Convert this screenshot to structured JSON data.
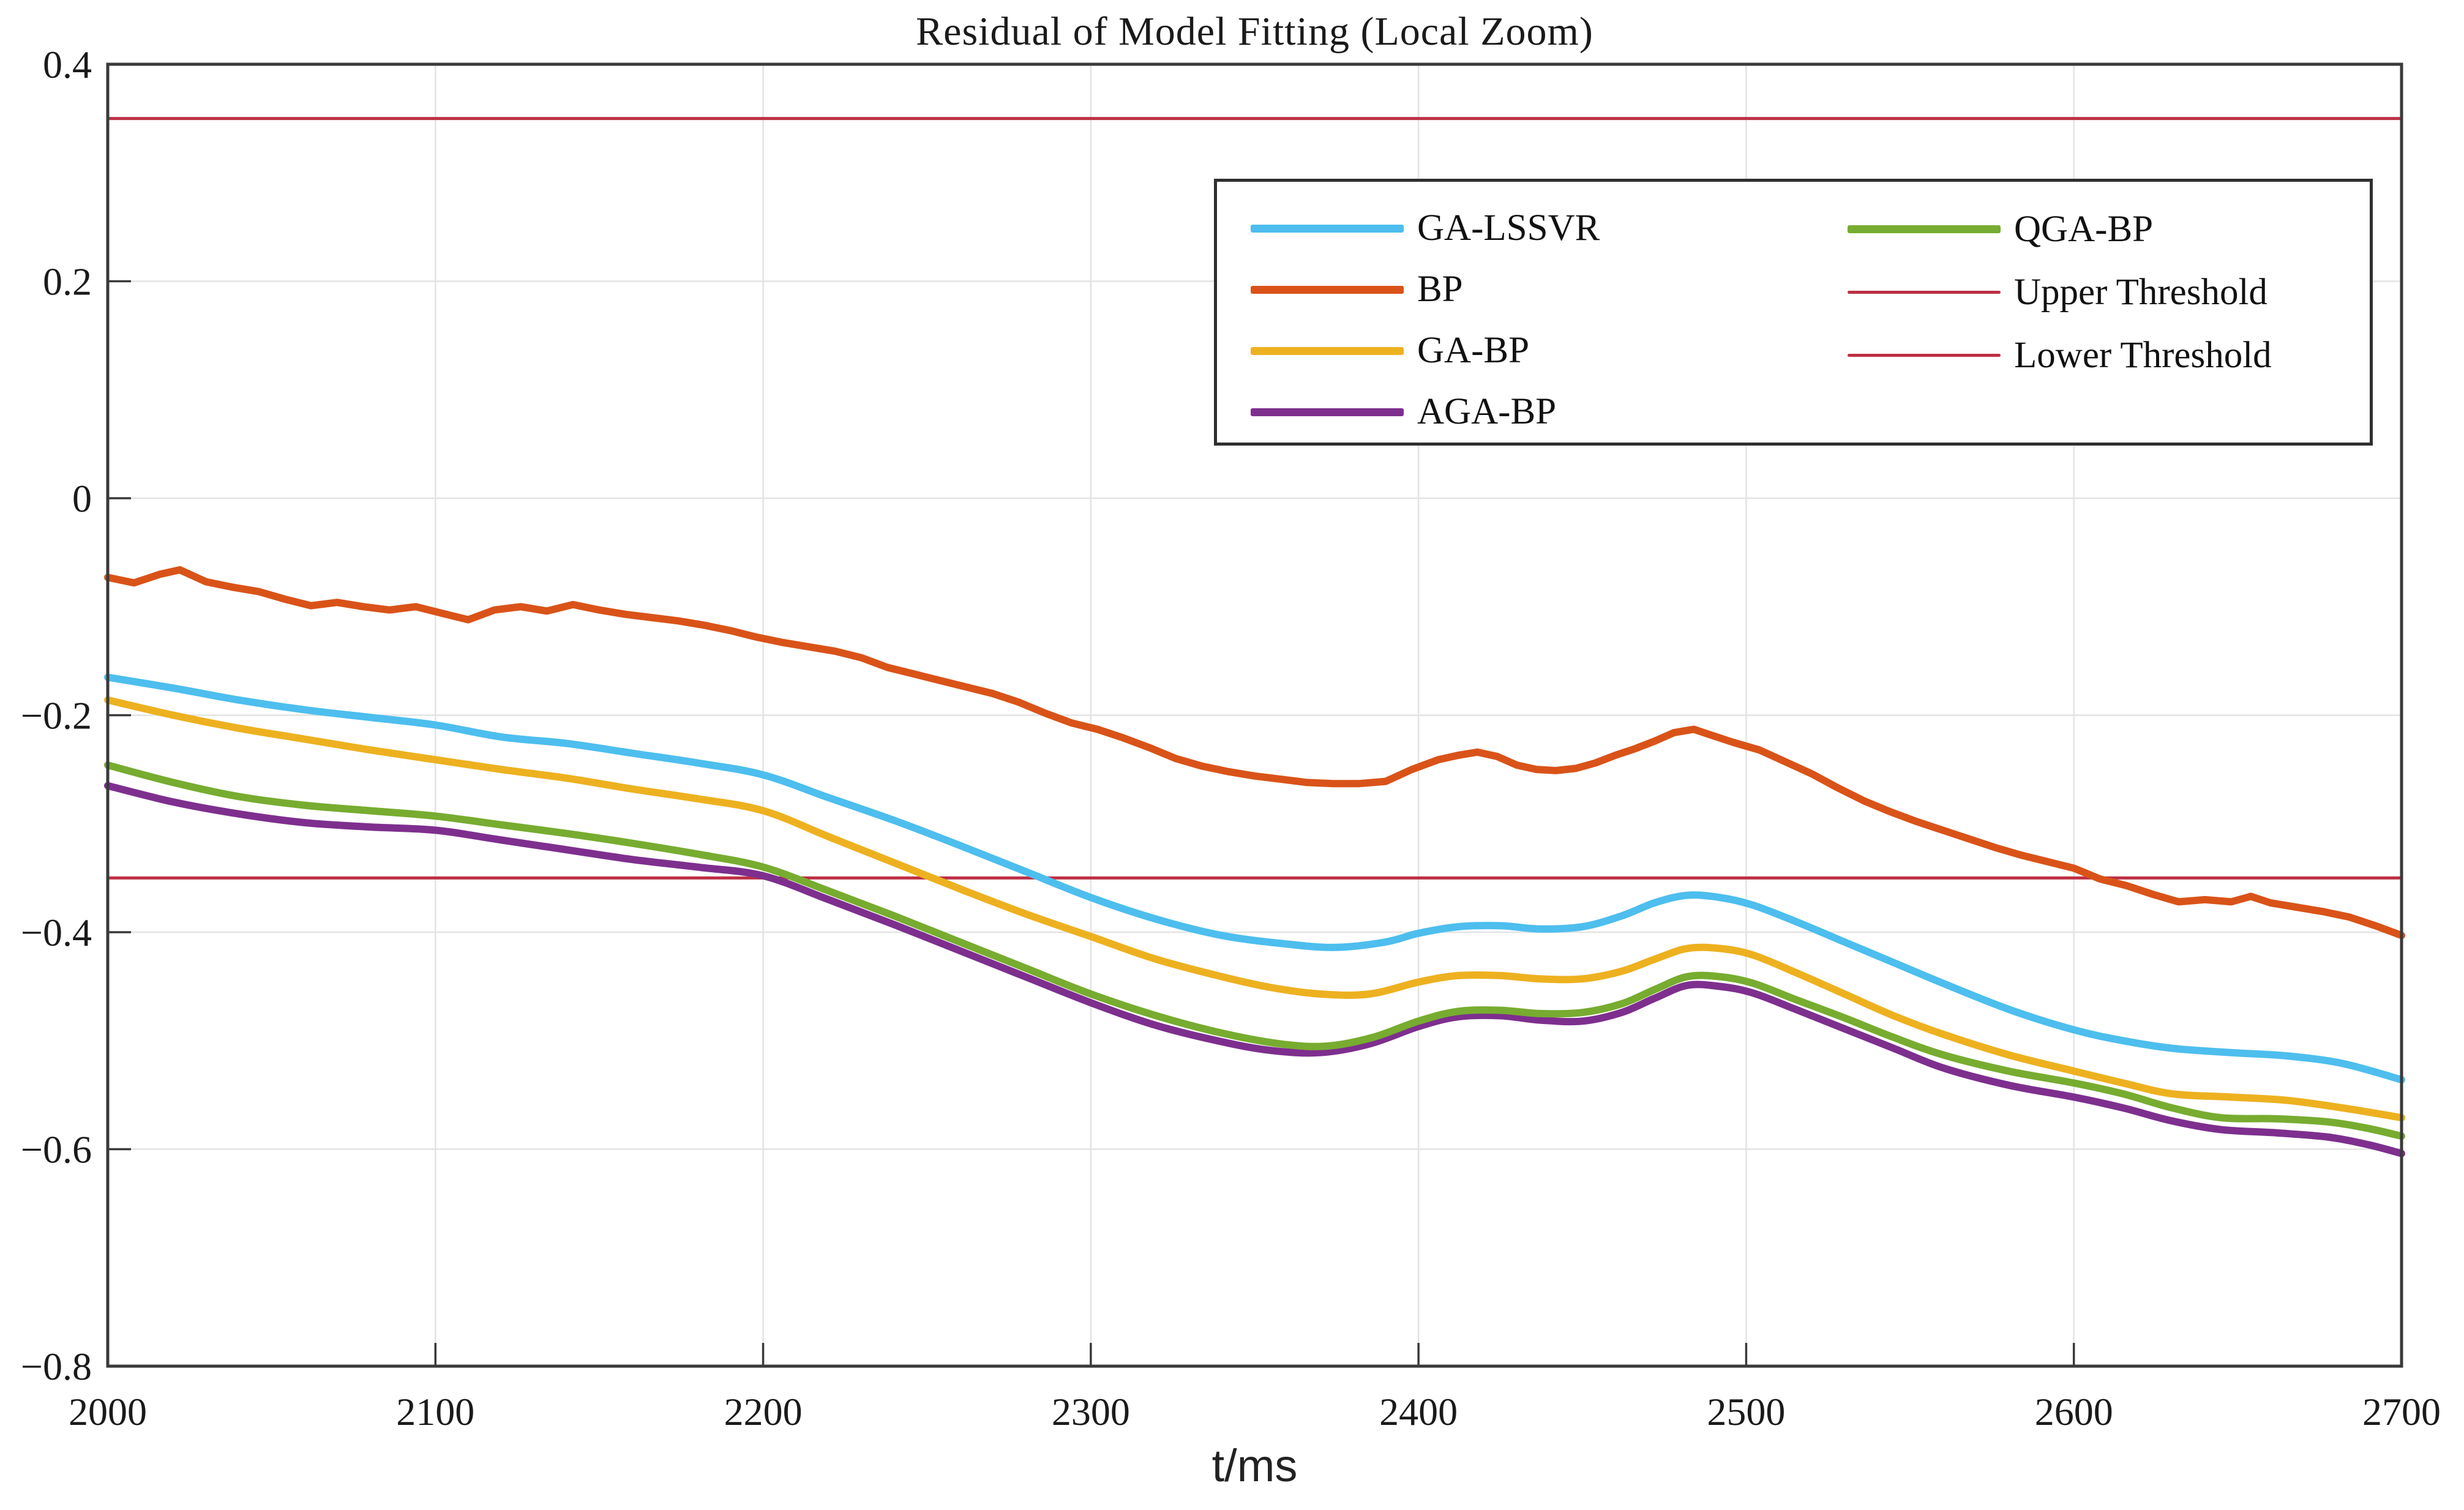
{
  "title": "Residual of Model Fitting (Local Zoom)",
  "x_axis_label": "t/ms",
  "colors": {
    "ga_lssvr": "#4DBEEE",
    "bp": "#D95319",
    "ga_bp": "#EDB120",
    "aga_bp": "#7E2F8E",
    "qga_bp": "#77AC30",
    "threshold": "#BE3045",
    "axis_frame": "#3a3a3a",
    "grid": "#e3e3e3",
    "tick_text": "#1a1a1a"
  },
  "legend": {
    "columns": [
      [
        {
          "label": "GA-LSSVR",
          "color": "#4DBEEE",
          "thickness": 13
        },
        {
          "label": "BP",
          "color": "#D95319",
          "thickness": 13
        },
        {
          "label": "GA-BP",
          "color": "#EDB120",
          "thickness": 13
        },
        {
          "label": "AGA-BP",
          "color": "#7E2F8E",
          "thickness": 13
        }
      ],
      [
        {
          "label": "QGA-BP",
          "color": "#77AC30",
          "thickness": 13
        },
        {
          "label": "Upper Threshold",
          "color": "#BE3045",
          "thickness": 5
        },
        {
          "label": "Lower Threshold",
          "color": "#BE3045",
          "thickness": 5
        }
      ]
    ]
  },
  "chart_data": {
    "type": "line",
    "title": "Residual of Model Fitting (Local Zoom)",
    "xlabel": "t/ms",
    "ylabel": "",
    "xlim": [
      2000,
      2700
    ],
    "ylim": [
      -0.8,
      0.4
    ],
    "grid": true,
    "legend_position": "upper right, two columns, boxed",
    "x_ticks": [
      2000,
      2100,
      2200,
      2300,
      2400,
      2500,
      2600,
      2700
    ],
    "x_tick_labels": [
      "2000",
      "2100",
      "2200",
      "2300",
      "2400",
      "2500",
      "2600",
      "2700"
    ],
    "y_ticks": [
      0.4,
      0.2,
      0,
      -0.2,
      -0.4,
      -0.6,
      -0.8
    ],
    "y_tick_labels": [
      "0.4",
      "0.2",
      "0",
      "−0.2",
      "−0.4",
      "−0.6",
      "−0.8"
    ],
    "thresholds": [
      {
        "name": "Upper Threshold",
        "value": 0.35,
        "color": "#BE3045",
        "width": 5
      },
      {
        "name": "Lower Threshold",
        "value": -0.35,
        "color": "#BE3045",
        "width": 5
      }
    ],
    "series": [
      {
        "name": "GA-LSSVR",
        "color": "#4DBEEE",
        "width": 12,
        "smooth": true,
        "points": [
          [
            2000,
            -0.165
          ],
          [
            2020,
            -0.175
          ],
          [
            2040,
            -0.186
          ],
          [
            2060,
            -0.195
          ],
          [
            2080,
            -0.202
          ],
          [
            2100,
            -0.209
          ],
          [
            2120,
            -0.22
          ],
          [
            2140,
            -0.226
          ],
          [
            2160,
            -0.235
          ],
          [
            2180,
            -0.244
          ],
          [
            2200,
            -0.255
          ],
          [
            2220,
            -0.276
          ],
          [
            2240,
            -0.297
          ],
          [
            2260,
            -0.32
          ],
          [
            2280,
            -0.344
          ],
          [
            2300,
            -0.368
          ],
          [
            2320,
            -0.388
          ],
          [
            2340,
            -0.403
          ],
          [
            2360,
            -0.411
          ],
          [
            2375,
            -0.414
          ],
          [
            2390,
            -0.409
          ],
          [
            2400,
            -0.401
          ],
          [
            2412,
            -0.395
          ],
          [
            2425,
            -0.394
          ],
          [
            2437,
            -0.397
          ],
          [
            2450,
            -0.395
          ],
          [
            2462,
            -0.385
          ],
          [
            2472,
            -0.373
          ],
          [
            2482,
            -0.366
          ],
          [
            2492,
            -0.368
          ],
          [
            2502,
            -0.375
          ],
          [
            2515,
            -0.39
          ],
          [
            2530,
            -0.409
          ],
          [
            2545,
            -0.428
          ],
          [
            2560,
            -0.447
          ],
          [
            2580,
            -0.471
          ],
          [
            2600,
            -0.49
          ],
          [
            2615,
            -0.5
          ],
          [
            2630,
            -0.507
          ],
          [
            2648,
            -0.511
          ],
          [
            2665,
            -0.514
          ],
          [
            2682,
            -0.521
          ],
          [
            2700,
            -0.536
          ]
        ]
      },
      {
        "name": "BP",
        "color": "#D95319",
        "width": 12,
        "smooth": false,
        "points": [
          [
            2000,
            -0.073
          ],
          [
            2008,
            -0.078
          ],
          [
            2016,
            -0.07
          ],
          [
            2022,
            -0.066
          ],
          [
            2030,
            -0.077
          ],
          [
            2038,
            -0.082
          ],
          [
            2046,
            -0.086
          ],
          [
            2054,
            -0.093
          ],
          [
            2062,
            -0.099
          ],
          [
            2070,
            -0.096
          ],
          [
            2078,
            -0.1
          ],
          [
            2086,
            -0.103
          ],
          [
            2094,
            -0.1
          ],
          [
            2102,
            -0.106
          ],
          [
            2110,
            -0.112
          ],
          [
            2118,
            -0.103
          ],
          [
            2126,
            -0.1
          ],
          [
            2134,
            -0.104
          ],
          [
            2142,
            -0.098
          ],
          [
            2150,
            -0.103
          ],
          [
            2158,
            -0.107
          ],
          [
            2166,
            -0.11
          ],
          [
            2174,
            -0.113
          ],
          [
            2182,
            -0.117
          ],
          [
            2190,
            -0.122
          ],
          [
            2198,
            -0.128
          ],
          [
            2206,
            -0.133
          ],
          [
            2214,
            -0.137
          ],
          [
            2222,
            -0.141
          ],
          [
            2230,
            -0.147
          ],
          [
            2238,
            -0.156
          ],
          [
            2246,
            -0.162
          ],
          [
            2254,
            -0.168
          ],
          [
            2262,
            -0.174
          ],
          [
            2270,
            -0.18
          ],
          [
            2278,
            -0.188
          ],
          [
            2286,
            -0.198
          ],
          [
            2294,
            -0.207
          ],
          [
            2302,
            -0.213
          ],
          [
            2310,
            -0.221
          ],
          [
            2318,
            -0.23
          ],
          [
            2326,
            -0.24
          ],
          [
            2334,
            -0.247
          ],
          [
            2342,
            -0.252
          ],
          [
            2350,
            -0.256
          ],
          [
            2358,
            -0.259
          ],
          [
            2366,
            -0.262
          ],
          [
            2374,
            -0.263
          ],
          [
            2382,
            -0.263
          ],
          [
            2390,
            -0.261
          ],
          [
            2398,
            -0.25
          ],
          [
            2406,
            -0.241
          ],
          [
            2412,
            -0.237
          ],
          [
            2418,
            -0.234
          ],
          [
            2424,
            -0.238
          ],
          [
            2430,
            -0.246
          ],
          [
            2436,
            -0.25
          ],
          [
            2442,
            -0.251
          ],
          [
            2448,
            -0.249
          ],
          [
            2454,
            -0.244
          ],
          [
            2460,
            -0.237
          ],
          [
            2466,
            -0.231
          ],
          [
            2472,
            -0.224
          ],
          [
            2478,
            -0.216
          ],
          [
            2484,
            -0.213
          ],
          [
            2490,
            -0.219
          ],
          [
            2496,
            -0.225
          ],
          [
            2504,
            -0.232
          ],
          [
            2512,
            -0.243
          ],
          [
            2520,
            -0.254
          ],
          [
            2528,
            -0.267
          ],
          [
            2536,
            -0.279
          ],
          [
            2544,
            -0.289
          ],
          [
            2552,
            -0.298
          ],
          [
            2560,
            -0.306
          ],
          [
            2568,
            -0.314
          ],
          [
            2576,
            -0.322
          ],
          [
            2584,
            -0.329
          ],
          [
            2592,
            -0.335
          ],
          [
            2600,
            -0.341
          ],
          [
            2608,
            -0.351
          ],
          [
            2616,
            -0.357
          ],
          [
            2624,
            -0.365
          ],
          [
            2632,
            -0.372
          ],
          [
            2640,
            -0.37
          ],
          [
            2648,
            -0.372
          ],
          [
            2654,
            -0.367
          ],
          [
            2660,
            -0.373
          ],
          [
            2668,
            -0.377
          ],
          [
            2676,
            -0.381
          ],
          [
            2684,
            -0.386
          ],
          [
            2692,
            -0.394
          ],
          [
            2700,
            -0.403
          ]
        ]
      },
      {
        "name": "GA-BP",
        "color": "#EDB120",
        "width": 12,
        "smooth": true,
        "points": [
          [
            2000,
            -0.186
          ],
          [
            2020,
            -0.2
          ],
          [
            2040,
            -0.212
          ],
          [
            2060,
            -0.222
          ],
          [
            2080,
            -0.232
          ],
          [
            2100,
            -0.241
          ],
          [
            2120,
            -0.25
          ],
          [
            2140,
            -0.258
          ],
          [
            2160,
            -0.268
          ],
          [
            2180,
            -0.277
          ],
          [
            2200,
            -0.288
          ],
          [
            2220,
            -0.312
          ],
          [
            2240,
            -0.336
          ],
          [
            2260,
            -0.36
          ],
          [
            2280,
            -0.383
          ],
          [
            2300,
            -0.404
          ],
          [
            2320,
            -0.425
          ],
          [
            2340,
            -0.441
          ],
          [
            2355,
            -0.451
          ],
          [
            2370,
            -0.457
          ],
          [
            2385,
            -0.457
          ],
          [
            2400,
            -0.446
          ],
          [
            2412,
            -0.44
          ],
          [
            2425,
            -0.44
          ],
          [
            2437,
            -0.443
          ],
          [
            2450,
            -0.443
          ],
          [
            2462,
            -0.436
          ],
          [
            2472,
            -0.425
          ],
          [
            2482,
            -0.415
          ],
          [
            2492,
            -0.415
          ],
          [
            2502,
            -0.421
          ],
          [
            2515,
            -0.437
          ],
          [
            2530,
            -0.457
          ],
          [
            2545,
            -0.477
          ],
          [
            2560,
            -0.494
          ],
          [
            2580,
            -0.513
          ],
          [
            2600,
            -0.528
          ],
          [
            2615,
            -0.539
          ],
          [
            2630,
            -0.549
          ],
          [
            2648,
            -0.552
          ],
          [
            2665,
            -0.555
          ],
          [
            2682,
            -0.562
          ],
          [
            2700,
            -0.571
          ]
        ]
      },
      {
        "name": "AGA-BP",
        "color": "#7E2F8E",
        "width": 12,
        "smooth": true,
        "points": [
          [
            2000,
            -0.265
          ],
          [
            2020,
            -0.28
          ],
          [
            2040,
            -0.291
          ],
          [
            2060,
            -0.299
          ],
          [
            2080,
            -0.303
          ],
          [
            2100,
            -0.306
          ],
          [
            2120,
            -0.315
          ],
          [
            2140,
            -0.324
          ],
          [
            2160,
            -0.333
          ],
          [
            2180,
            -0.34
          ],
          [
            2200,
            -0.348
          ],
          [
            2220,
            -0.37
          ],
          [
            2240,
            -0.393
          ],
          [
            2260,
            -0.417
          ],
          [
            2280,
            -0.441
          ],
          [
            2300,
            -0.465
          ],
          [
            2320,
            -0.486
          ],
          [
            2340,
            -0.501
          ],
          [
            2355,
            -0.509
          ],
          [
            2370,
            -0.511
          ],
          [
            2385,
            -0.503
          ],
          [
            2400,
            -0.487
          ],
          [
            2412,
            -0.478
          ],
          [
            2425,
            -0.477
          ],
          [
            2437,
            -0.481
          ],
          [
            2450,
            -0.482
          ],
          [
            2462,
            -0.474
          ],
          [
            2472,
            -0.461
          ],
          [
            2482,
            -0.449
          ],
          [
            2492,
            -0.45
          ],
          [
            2502,
            -0.456
          ],
          [
            2515,
            -0.471
          ],
          [
            2530,
            -0.489
          ],
          [
            2545,
            -0.507
          ],
          [
            2560,
            -0.525
          ],
          [
            2580,
            -0.541
          ],
          [
            2600,
            -0.552
          ],
          [
            2615,
            -0.562
          ],
          [
            2630,
            -0.574
          ],
          [
            2645,
            -0.582
          ],
          [
            2662,
            -0.585
          ],
          [
            2678,
            -0.589
          ],
          [
            2690,
            -0.596
          ],
          [
            2700,
            -0.604
          ]
        ]
      },
      {
        "name": "QGA-BP",
        "color": "#77AC30",
        "width": 12,
        "smooth": true,
        "points": [
          [
            2000,
            -0.246
          ],
          [
            2020,
            -0.262
          ],
          [
            2040,
            -0.275
          ],
          [
            2060,
            -0.283
          ],
          [
            2080,
            -0.288
          ],
          [
            2100,
            -0.293
          ],
          [
            2120,
            -0.301
          ],
          [
            2140,
            -0.309
          ],
          [
            2160,
            -0.318
          ],
          [
            2180,
            -0.328
          ],
          [
            2200,
            -0.34
          ],
          [
            2220,
            -0.362
          ],
          [
            2240,
            -0.385
          ],
          [
            2260,
            -0.409
          ],
          [
            2280,
            -0.433
          ],
          [
            2300,
            -0.457
          ],
          [
            2320,
            -0.477
          ],
          [
            2340,
            -0.493
          ],
          [
            2358,
            -0.503
          ],
          [
            2372,
            -0.505
          ],
          [
            2386,
            -0.497
          ],
          [
            2400,
            -0.482
          ],
          [
            2412,
            -0.473
          ],
          [
            2425,
            -0.472
          ],
          [
            2437,
            -0.475
          ],
          [
            2450,
            -0.474
          ],
          [
            2462,
            -0.466
          ],
          [
            2472,
            -0.453
          ],
          [
            2482,
            -0.441
          ],
          [
            2492,
            -0.441
          ],
          [
            2502,
            -0.447
          ],
          [
            2515,
            -0.462
          ],
          [
            2530,
            -0.479
          ],
          [
            2545,
            -0.497
          ],
          [
            2560,
            -0.513
          ],
          [
            2580,
            -0.528
          ],
          [
            2600,
            -0.539
          ],
          [
            2615,
            -0.549
          ],
          [
            2630,
            -0.562
          ],
          [
            2645,
            -0.571
          ],
          [
            2662,
            -0.572
          ],
          [
            2678,
            -0.575
          ],
          [
            2690,
            -0.581
          ],
          [
            2700,
            -0.588
          ]
        ]
      }
    ]
  }
}
